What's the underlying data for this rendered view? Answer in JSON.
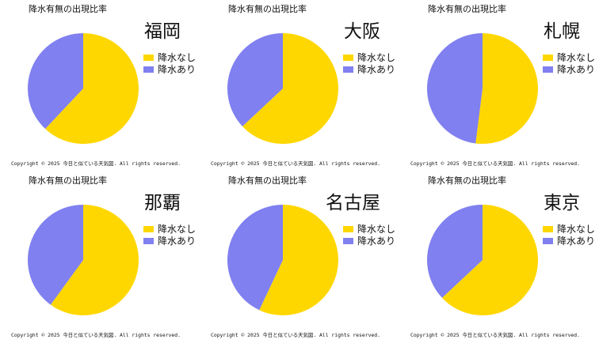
{
  "chart_data": [
    {
      "type": "pie",
      "title": "降水有無の出現比率",
      "city": "福岡",
      "labels": [
        "降水なし",
        "降水あり"
      ],
      "values": [
        62,
        38
      ],
      "colors": [
        "#ffd700",
        "#8080f0"
      ],
      "legend": "right",
      "copyright": "Copyright ©  2025  今日と似ている天気図. All rights reserved."
    },
    {
      "type": "pie",
      "title": "降水有無の出現比率",
      "city": "大阪",
      "labels": [
        "降水なし",
        "降水あり"
      ],
      "values": [
        63,
        37
      ],
      "colors": [
        "#ffd700",
        "#8080f0"
      ],
      "legend": "right",
      "copyright": "Copyright ©  2025  今日と似ている天気図. All rights reserved."
    },
    {
      "type": "pie",
      "title": "降水有無の出現比率",
      "city": "札幌",
      "labels": [
        "降水なし",
        "降水あり"
      ],
      "values": [
        52,
        48
      ],
      "colors": [
        "#ffd700",
        "#8080f0"
      ],
      "legend": "right",
      "copyright": "Copyright ©  2025  今日と似ている天気図. All rights reserved."
    },
    {
      "type": "pie",
      "title": "降水有無の出現比率",
      "city": "那覇",
      "labels": [
        "降水なし",
        "降水あり"
      ],
      "values": [
        60,
        40
      ],
      "colors": [
        "#ffd700",
        "#8080f0"
      ],
      "legend": "right",
      "copyright": "Copyright ©  2025  今日と似ている天気図. All rights reserved."
    },
    {
      "type": "pie",
      "title": "降水有無の出現比率",
      "city": "名古屋",
      "labels": [
        "降水なし",
        "降水あり"
      ],
      "values": [
        57,
        43
      ],
      "colors": [
        "#ffd700",
        "#8080f0"
      ],
      "legend": "right",
      "copyright": "Copyright ©  2025  今日と似ている天気図. All rights reserved."
    },
    {
      "type": "pie",
      "title": "降水有無の出現比率",
      "city": "東京",
      "labels": [
        "降水なし",
        "降水あり"
      ],
      "values": [
        63,
        37
      ],
      "colors": [
        "#ffd700",
        "#8080f0"
      ],
      "legend": "right",
      "copyright": "Copyright ©  2025  今日と似ている天気図. All rights reserved."
    }
  ]
}
